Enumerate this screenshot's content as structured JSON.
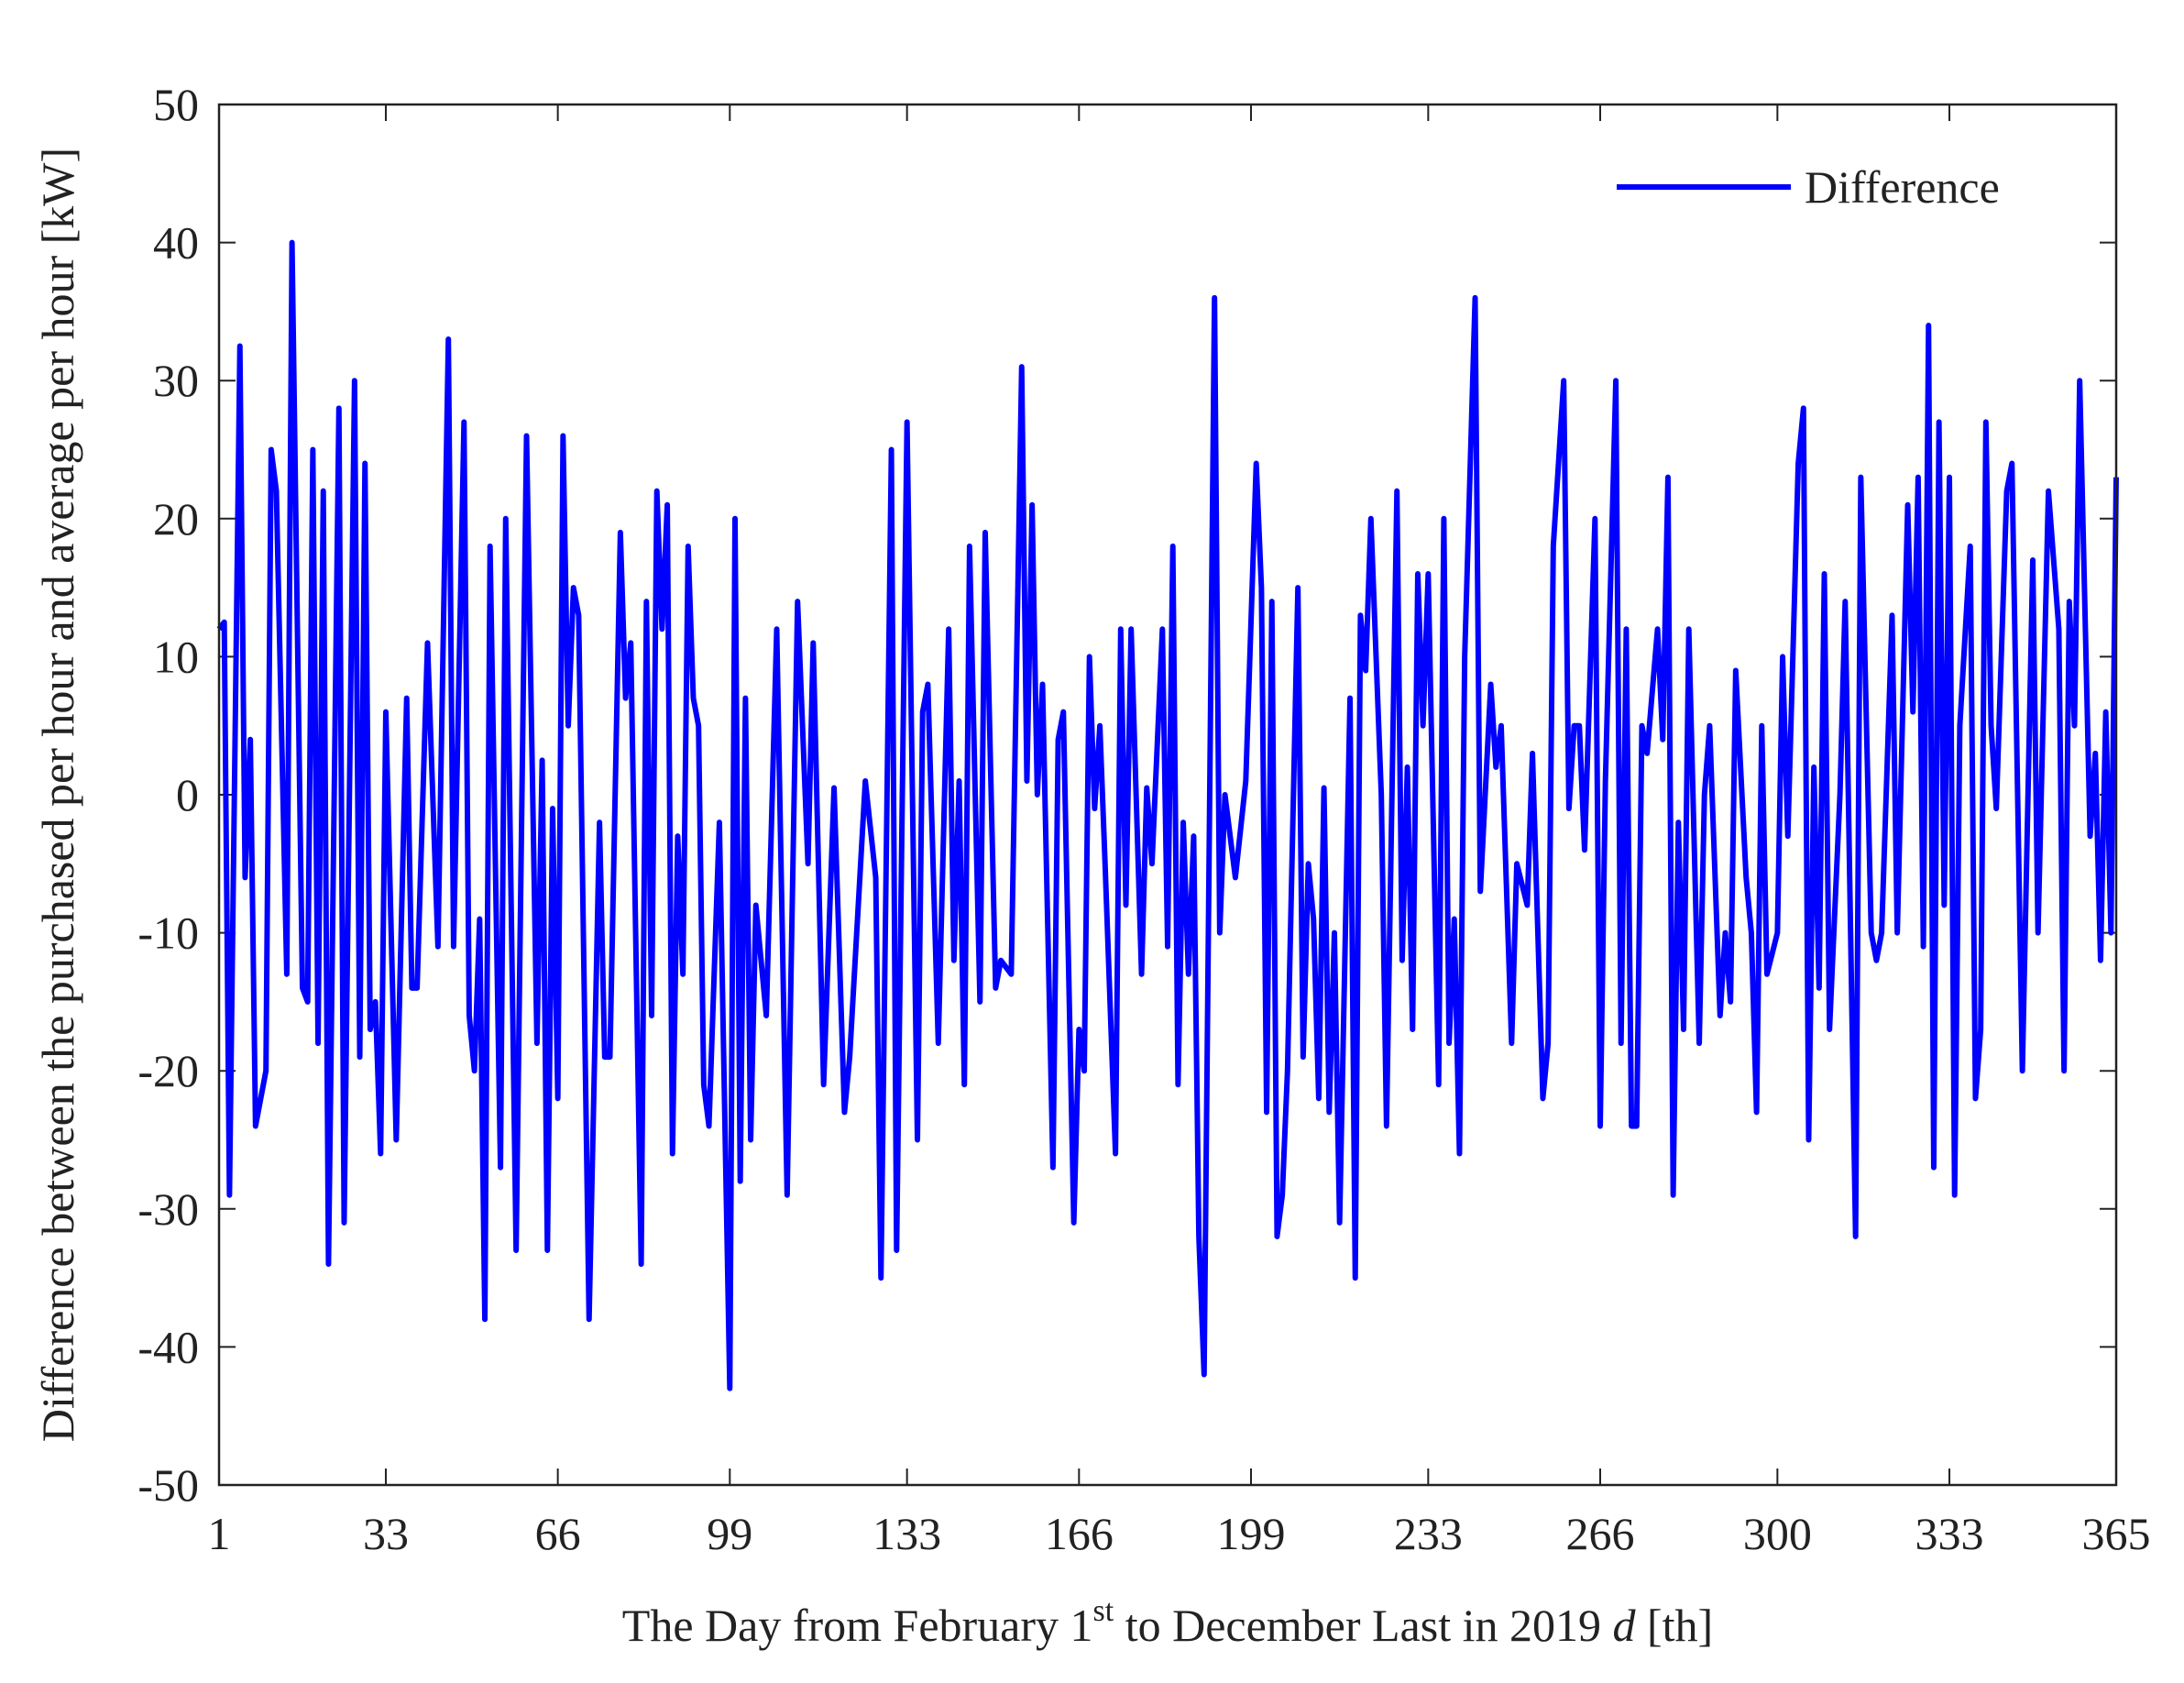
{
  "chart_data": {
    "type": "line",
    "x_label": [
      "The Day from February 1",
      "st",
      " to December Last in 2019 ",
      "d",
      " [th]"
    ],
    "y_label": "Difference between the purchased per hour and average per hour [kW]",
    "xlim": [
      1,
      365
    ],
    "xticks": [
      1,
      33,
      66,
      99,
      133,
      166,
      199,
      233,
      266,
      300,
      333,
      365
    ],
    "ylim": [
      -50,
      50
    ],
    "yticks": [
      -50,
      -40,
      -30,
      -20,
      -10,
      0,
      10,
      20,
      30,
      40,
      50
    ],
    "grid": false,
    "legend": "northeast",
    "x": [
      1,
      2,
      3,
      5,
      6,
      7,
      8,
      10,
      11,
      12,
      14,
      15,
      17,
      18,
      19,
      20,
      21,
      22,
      24,
      25,
      27,
      28,
      29,
      30,
      31,
      32,
      33,
      35,
      37,
      38,
      39,
      41,
      43,
      45,
      46,
      48,
      49,
      50,
      51,
      52,
      53,
      55,
      56,
      58,
      60,
      62,
      63,
      64,
      65,
      66,
      67,
      68,
      69,
      70,
      72,
      74,
      75,
      76,
      78,
      79,
      80,
      82,
      83,
      84,
      85,
      86,
      87,
      88,
      89,
      90,
      91,
      92,
      93,
      94,
      95,
      97,
      99,
      100,
      101,
      102,
      103,
      104,
      106,
      108,
      110,
      112,
      114,
      115,
      117,
      119,
      121,
      122,
      125,
      127,
      128,
      130,
      131,
      133,
      135,
      136,
      137,
      139,
      141,
      142,
      143,
      144,
      145,
      147,
      148,
      150,
      151,
      153,
      155,
      156,
      157,
      158,
      159,
      161,
      162,
      163,
      165,
      166,
      167,
      168,
      169,
      170,
      171,
      173,
      174,
      175,
      176,
      178,
      179,
      180,
      182,
      183,
      184,
      185,
      186,
      187,
      188,
      189,
      190,
      192,
      193,
      194,
      196,
      198,
      200,
      201,
      202,
      203,
      204,
      205,
      206,
      208,
      209,
      210,
      211,
      212,
      213,
      214,
      215,
      216,
      218,
      219,
      220,
      221,
      222,
      224,
      225,
      227,
      228,
      229,
      230,
      231,
      232,
      233,
      235,
      236,
      237,
      238,
      239,
      240,
      242,
      243,
      245,
      246,
      247,
      249,
      250,
      252,
      253,
      255,
      256,
      257,
      259,
      260,
      261,
      262,
      263,
      265,
      266,
      267,
      269,
      270,
      271,
      272,
      273,
      274,
      275,
      277,
      278,
      279,
      280,
      281,
      282,
      283,
      285,
      286,
      287,
      289,
      290,
      291,
      292,
      294,
      295,
      296,
      297,
      298,
      300,
      301,
      302,
      304,
      305,
      306,
      307,
      308,
      309,
      310,
      312,
      313,
      315,
      316,
      318,
      319,
      320,
      322,
      323,
      325,
      326,
      327,
      328,
      329,
      330,
      331,
      332,
      333,
      334,
      335,
      337,
      338,
      339,
      340,
      341,
      342,
      344,
      345,
      347,
      349,
      350,
      352,
      354,
      355,
      356,
      357,
      358,
      360,
      361,
      362,
      363,
      364,
      365
    ],
    "series": [
      {
        "name": "Difference",
        "color": "#0000ff",
        "values": [
          12,
          12.5,
          -29,
          32.5,
          -6,
          4,
          -24,
          -20,
          25,
          22,
          -13,
          40,
          -14,
          -15,
          25,
          -18,
          22,
          -34,
          28,
          -31,
          30,
          -19,
          24,
          -17,
          -15,
          -26,
          6,
          -25,
          7,
          -14,
          -14,
          11,
          -11,
          33,
          -11,
          27,
          -16,
          -20,
          -9,
          -38,
          18,
          -27,
          20,
          -33,
          26,
          -18,
          2.5,
          -33,
          -1,
          -22,
          26,
          5,
          15,
          13,
          -38,
          -2,
          -19,
          -19,
          19,
          7,
          11,
          -34,
          14,
          -16,
          22,
          12,
          21,
          -26,
          -3,
          -13,
          18,
          7,
          5,
          -21,
          -24,
          -2,
          -43,
          20,
          -28,
          7,
          -25,
          -8,
          -16,
          12,
          -29,
          14,
          -5,
          11,
          -21,
          0.5,
          -23,
          -19,
          1,
          -6,
          -35,
          25,
          -33,
          27,
          -25,
          6,
          8,
          -18,
          12,
          -12,
          1,
          -21,
          18,
          -15,
          19,
          -14,
          -12,
          -13,
          31,
          1,
          21,
          0,
          8,
          -27,
          4,
          6,
          -31,
          -17,
          -20,
          10,
          -1,
          5,
          -5,
          -26,
          12,
          -8,
          12,
          -13,
          0.5,
          -5,
          12,
          -11,
          18,
          -21,
          -2,
          -13,
          -3,
          -32,
          -42,
          36,
          -10,
          0,
          -6,
          1,
          24,
          15,
          -23,
          14,
          -32,
          -29,
          -20,
          15,
          -19,
          -5,
          -9,
          -22,
          0.5,
          -23,
          -10,
          -31,
          7,
          -35,
          13,
          9,
          20,
          0,
          -24,
          22,
          -12,
          2,
          -17,
          16,
          5,
          16,
          -21,
          20,
          -18,
          -9,
          -26,
          10,
          36,
          -7,
          8,
          2,
          5,
          -18,
          -5,
          -8,
          3,
          -22,
          -18,
          18,
          30,
          -1,
          5,
          5,
          -4,
          20,
          -24,
          1,
          30,
          -18,
          12,
          -24,
          -24,
          5,
          3,
          12,
          4,
          23,
          -29,
          -2,
          -17,
          12,
          -18,
          0,
          5,
          -16,
          -10,
          -15,
          9,
          -6,
          -10,
          -23,
          5,
          -13,
          -10,
          10,
          -3,
          24,
          28,
          -25,
          2,
          -14,
          16,
          -17,
          0,
          14,
          -32,
          23,
          -10,
          -12,
          -10,
          13,
          -10,
          21,
          6,
          23,
          -11,
          34,
          -27,
          27,
          -8,
          23,
          -29,
          5,
          18,
          -22,
          -17,
          27,
          5,
          -1,
          22,
          24,
          -20,
          17,
          -10,
          22,
          12,
          -20,
          14,
          5,
          30,
          -3,
          3,
          -12,
          6,
          -10,
          23
        ]
      }
    ]
  }
}
